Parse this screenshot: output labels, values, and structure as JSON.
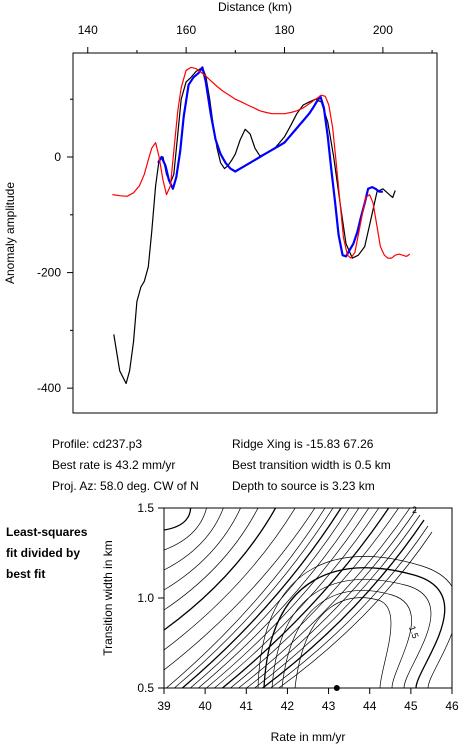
{
  "chart_data": [
    {
      "type": "line",
      "title": "",
      "xlabel": "Distance (km)",
      "ylabel": "Anomaly amplitude",
      "xlim": [
        137,
        211
      ],
      "ylim": [
        -443,
        180
      ],
      "x_ticks": [
        "140",
        "160",
        "180",
        "200"
      ],
      "y_ticks": [
        "0",
        "-200",
        "-400"
      ],
      "x_axis_position": "top",
      "grid": false,
      "legend": "none",
      "series": [
        {
          "color": "#000000",
          "x": [
            145.3,
            146.5,
            147.8,
            148.5,
            149.3,
            150.0,
            150.8,
            151.5,
            152.3,
            153.0,
            153.8,
            154.5,
            155.3,
            156.0,
            156.8,
            157.5,
            158.3,
            159.0,
            160.0,
            161.0,
            162.0,
            163.3,
            164.0,
            164.8,
            165.5,
            166.3,
            167.0,
            167.8,
            168.5,
            169.3,
            170.0,
            171.0,
            172.0,
            173.0,
            174.0,
            175.0,
            176.0,
            177.0,
            178.0,
            179.0,
            180.0,
            181.3,
            182.5,
            183.8,
            185.0,
            186.3,
            187.5,
            188.8,
            190.0,
            191.3,
            192.5,
            193.8,
            195.0,
            196.3,
            197.5,
            198.8,
            200.0,
            201.3,
            202.0,
            202.5
          ],
          "y": [
            -307,
            -370,
            -392,
            -370,
            -320,
            -250,
            -225,
            -215,
            -190,
            -130,
            -50,
            -5,
            0,
            -30,
            -45,
            -30,
            40,
            100,
            130,
            138,
            148,
            155,
            140,
            100,
            55,
            15,
            -10,
            -20,
            -15,
            -5,
            5,
            30,
            48,
            40,
            15,
            2,
            5,
            10,
            15,
            25,
            35,
            55,
            75,
            90,
            95,
            100,
            95,
            60,
            0,
            -80,
            -150,
            -175,
            -170,
            -155,
            -110,
            -60,
            -55,
            -65,
            -70,
            -58
          ]
        },
        {
          "color": "#0000ff",
          "x": [
            154.3,
            155.0,
            155.8,
            156.5,
            157.3,
            158.0,
            158.8,
            159.5,
            160.5,
            161.5,
            162.5,
            163.3,
            164.0,
            165.0,
            166.0,
            167.0,
            168.0,
            169.0,
            170.0,
            171.0,
            172.0,
            173.0,
            174.0,
            175.0,
            176.0,
            177.0,
            178.0,
            179.0,
            180.0,
            181.0,
            182.0,
            183.0,
            184.0,
            185.0,
            185.8,
            186.5,
            187.3,
            188.0,
            188.8,
            189.5,
            190.3,
            191.0,
            191.8,
            192.5,
            193.3,
            194.0,
            194.8,
            195.5,
            196.3,
            197.0,
            197.8,
            198.5,
            199.3,
            200.0
          ],
          "y": [
            -10,
            0,
            -15,
            -40,
            -55,
            -35,
            10,
            70,
            125,
            138,
            145,
            155,
            130,
            75,
            30,
            5,
            -10,
            -20,
            -25,
            -20,
            -15,
            -10,
            -5,
            0,
            5,
            10,
            15,
            20,
            25,
            35,
            45,
            55,
            65,
            75,
            85,
            95,
            105,
            85,
            35,
            -20,
            -80,
            -135,
            -170,
            -172,
            -160,
            -150,
            -130,
            -105,
            -80,
            -55,
            -52,
            -55,
            -60,
            -60
          ]
        },
        {
          "color": "#ff0000",
          "x": [
            145.0,
            146.5,
            148.0,
            149.3,
            150.5,
            151.5,
            152.3,
            153.0,
            153.8,
            154.5,
            155.3,
            156.0,
            156.8,
            157.5,
            158.3,
            159.0,
            160.0,
            161.0,
            162.0,
            163.0,
            164.0,
            165.0,
            166.3,
            167.5,
            168.8,
            170.0,
            171.3,
            172.5,
            173.8,
            175.0,
            176.3,
            177.5,
            178.8,
            180.0,
            181.3,
            182.5,
            183.8,
            185.0,
            186.3,
            187.5,
            188.3,
            189.0,
            189.8,
            190.5,
            191.3,
            192.0,
            192.8,
            193.5,
            194.3,
            195.0,
            195.8,
            196.5,
            197.3,
            198.0,
            198.8,
            199.5,
            200.3,
            201.0,
            201.8,
            202.5,
            203.3,
            204.0,
            204.8,
            205.5
          ],
          "y": [
            -65,
            -67,
            -68,
            -62,
            -50,
            -30,
            -5,
            15,
            25,
            0,
            -40,
            -65,
            -50,
            10,
            80,
            120,
            150,
            155,
            153,
            147,
            140,
            132,
            122,
            114,
            107,
            100,
            95,
            90,
            85,
            80,
            77,
            75,
            75,
            75,
            77,
            80,
            85,
            92,
            100,
            107,
            105,
            90,
            50,
            -10,
            -80,
            -140,
            -170,
            -175,
            -165,
            -135,
            -100,
            -70,
            -65,
            -80,
            -120,
            -155,
            -170,
            -175,
            -175,
            -170,
            -168,
            -170,
            -172,
            -168
          ]
        }
      ]
    },
    {
      "type": "contour",
      "title": "",
      "xlabel": "Rate in mm/yr",
      "ylabel": "Transition width in km",
      "xlim": [
        39,
        46
      ],
      "ylim": [
        0.5,
        1.5
      ],
      "x_ticks": [
        "39",
        "40",
        "41",
        "42",
        "43",
        "44",
        "45",
        "46"
      ],
      "y_ticks": [
        "0.5",
        "1.0",
        "1.5"
      ],
      "grid": false,
      "legend": "none",
      "best_fit_point": {
        "x": 43.2,
        "y": 0.5
      },
      "contour_labels": [
        "2",
        "1.5"
      ]
    }
  ],
  "info": {
    "profile": "Profile: cd237.p3",
    "best_rate": "Best rate is 43.2 mm/yr",
    "proj_az": "Proj. Az: 58.0 deg. CW of N",
    "ridge_xing": "Ridge Xing is -15.83 67.26",
    "best_width": "Best transition width is 0.5 km",
    "depth": "Depth to source is   3.23 km"
  },
  "side_label": [
    "Least-squares",
    "fit divided by",
    "best fit"
  ]
}
